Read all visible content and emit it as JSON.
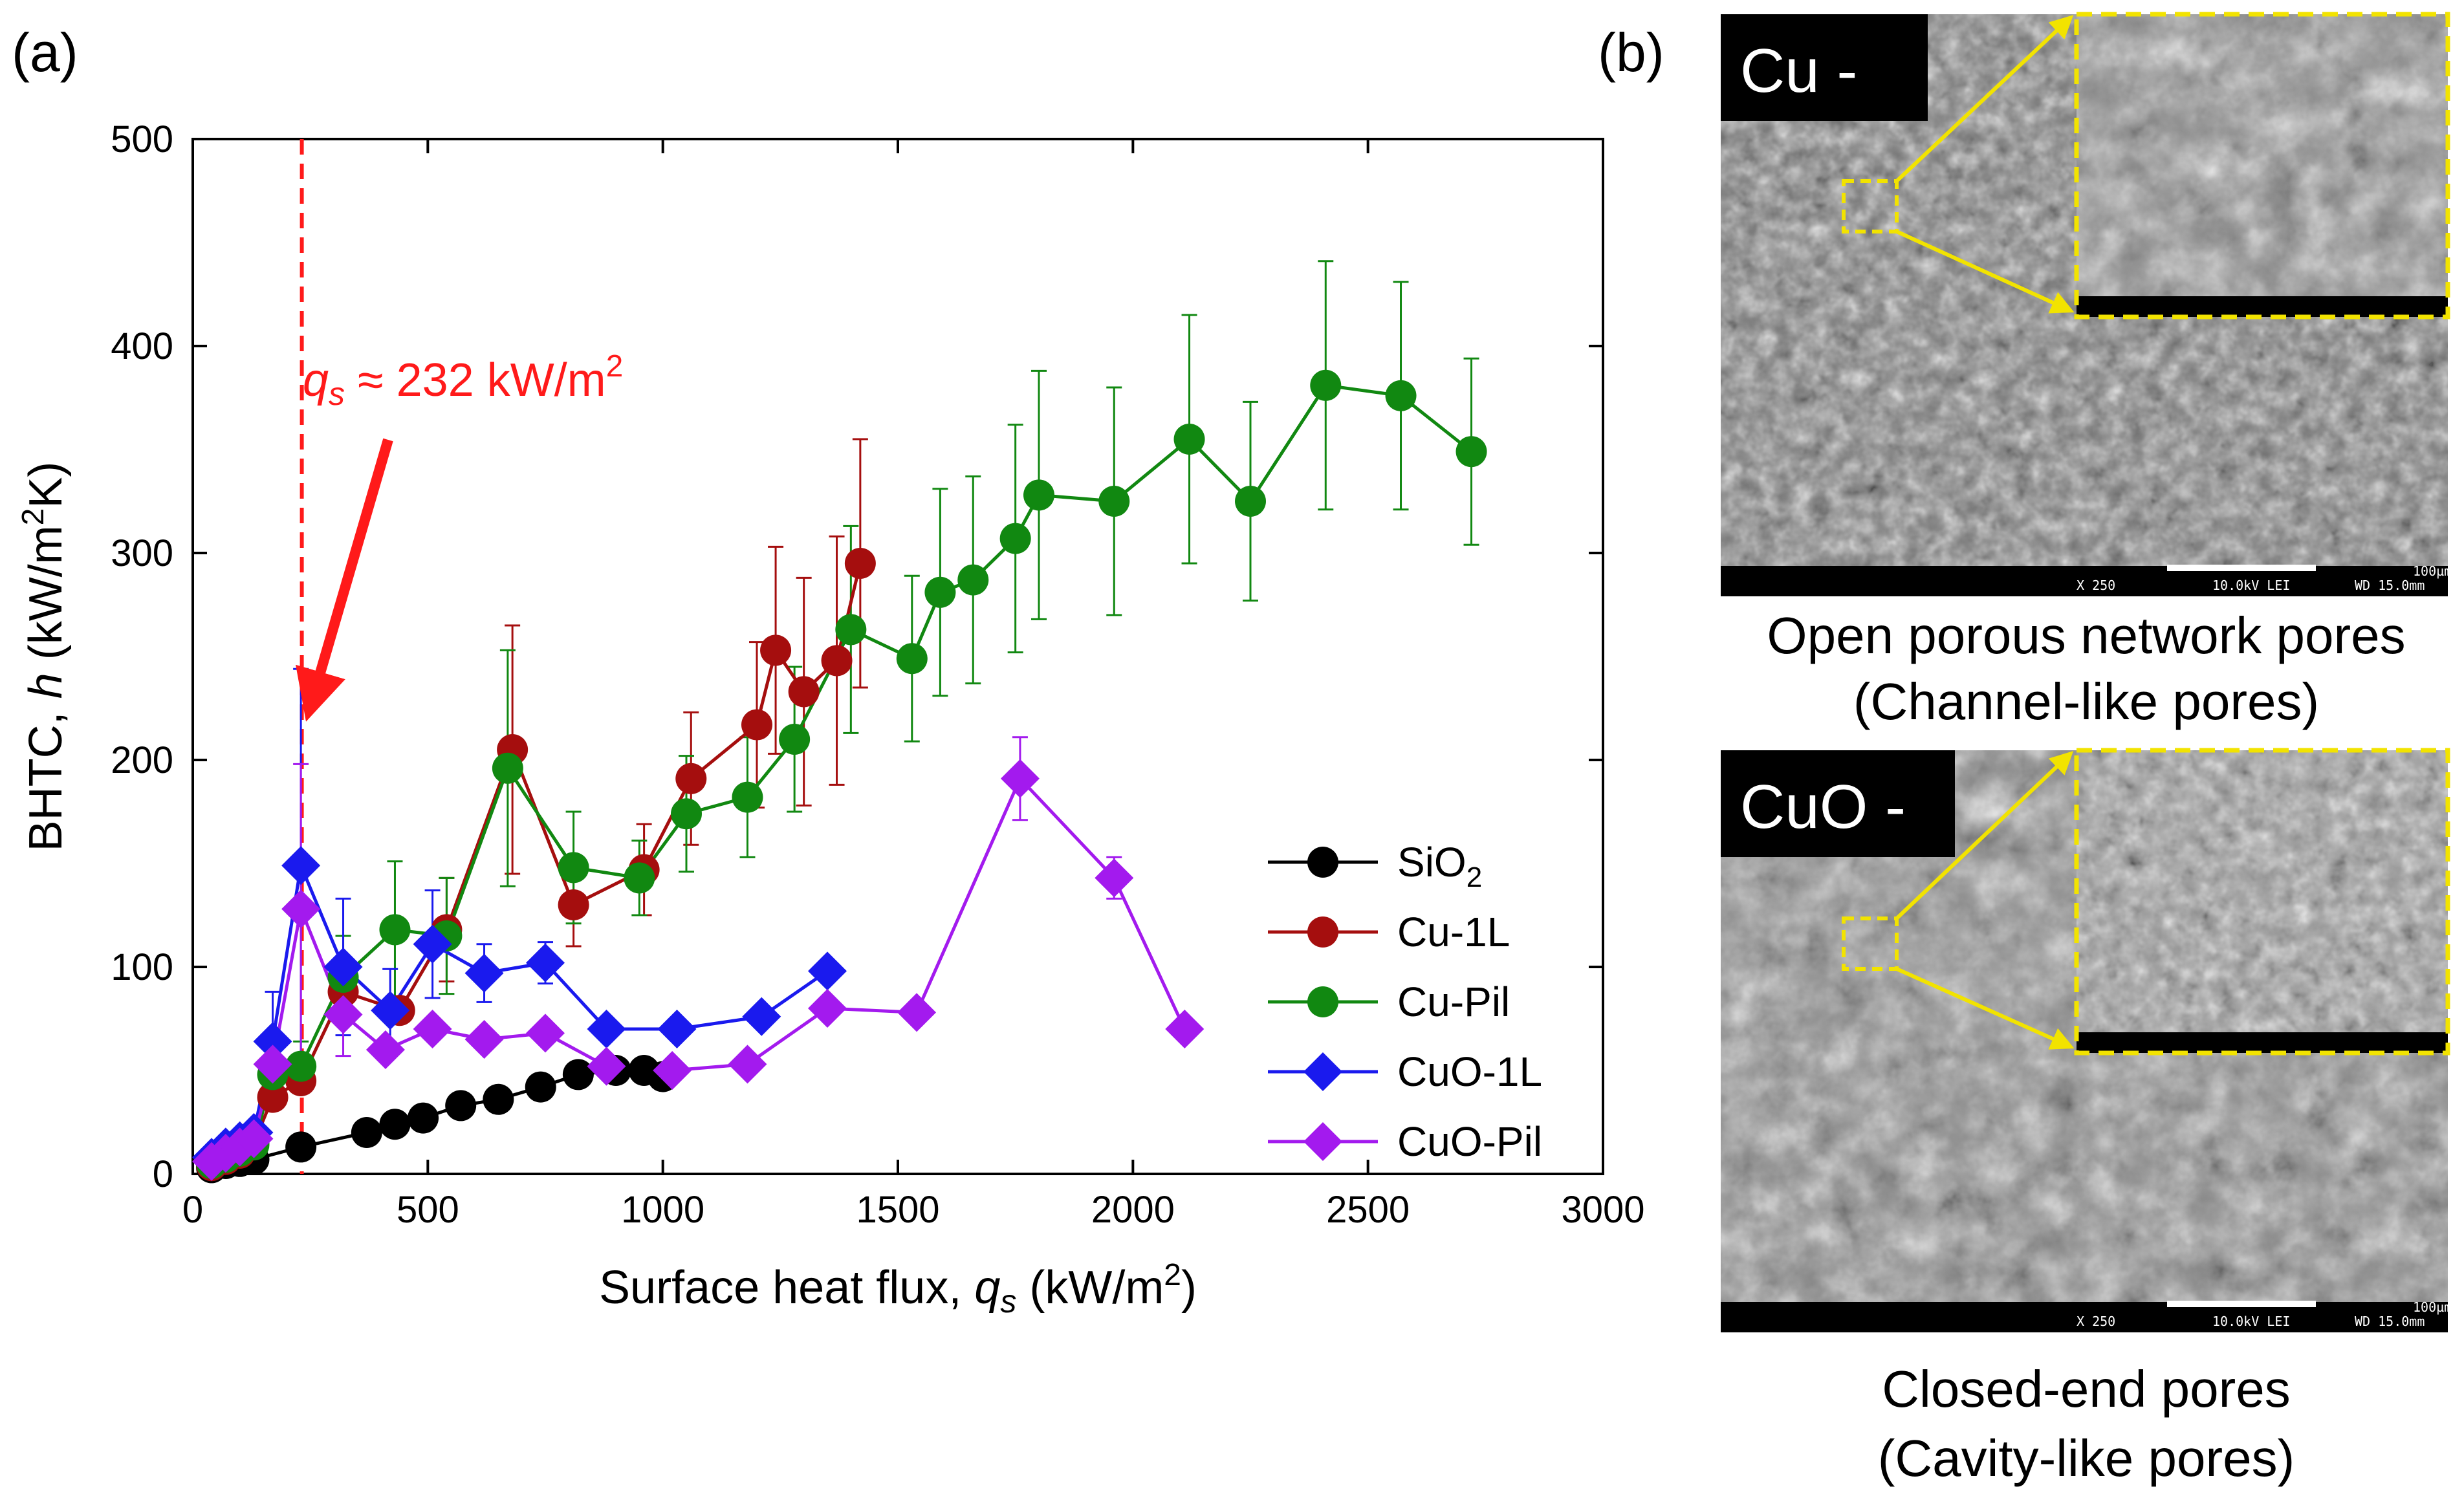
{
  "panel_a_label": "(a)",
  "panel_b_label": "(b)",
  "colors": {
    "SiO2": "#000000",
    "Cu-1L": "#a50e0e",
    "Cu-Pil": "#118811",
    "CuO-1L": "#1a1aee",
    "CuO-Pil": "#a31aee",
    "annotation": "#ff1a1a",
    "zoom_box": "#f2e300"
  },
  "chart_data": {
    "type": "scatter",
    "title": "",
    "xlabel_main": "Surface heat flux, ",
    "xlabel_var": "q",
    "xlabel_sub": "s",
    "xlabel_unit": " (kW/m",
    "xlabel_sup": "2",
    "xlabel_end": ")",
    "ylabel_main": "BHTC, ",
    "ylabel_var": "h",
    "ylabel_unit": " (kW/m",
    "ylabel_sup": "2",
    "ylabel_end": "K)",
    "xlim": [
      0,
      3000
    ],
    "ylim": [
      0,
      500
    ],
    "xticks": [
      0,
      500,
      1000,
      1500,
      2000,
      2500,
      3000
    ],
    "yticks": [
      0,
      100,
      200,
      300,
      400,
      500
    ],
    "grid": false,
    "legend_position": "lower-right",
    "annotation": {
      "var": "q",
      "sub": "s",
      "text": " ≈ 232 kW/m",
      "sup": "2",
      "x": 232
    },
    "series": [
      {
        "name": "SiO2",
        "legend_main": "SiO",
        "legend_sub": "2",
        "marker": "circle",
        "x": [
          40,
          70,
          100,
          130,
          230,
          370,
          430,
          490,
          570,
          650,
          740,
          820,
          900,
          960,
          1000
        ],
        "y": [
          3,
          5,
          6,
          7,
          13,
          20,
          24,
          27,
          33,
          36,
          42,
          48,
          50,
          50,
          47
        ]
      },
      {
        "name": "Cu-1L",
        "legend_main": "Cu-1L",
        "legend_sub": "",
        "marker": "circle",
        "x": [
          40,
          70,
          100,
          130,
          170,
          230,
          320,
          440,
          540,
          680,
          810,
          960,
          1060,
          1200,
          1240,
          1300,
          1370,
          1420
        ],
        "y": [
          4,
          7,
          10,
          15,
          37,
          45,
          88,
          79,
          118,
          205,
          130,
          147,
          191,
          217,
          253,
          233,
          248,
          295
        ],
        "err": [
          0,
          0,
          0,
          0,
          0,
          0,
          0,
          0,
          25,
          60,
          20,
          22,
          32,
          40,
          50,
          55,
          60,
          60
        ]
      },
      {
        "name": "Cu-Pil",
        "legend_main": "Cu-Pil",
        "legend_sub": "",
        "marker": "circle",
        "x": [
          40,
          70,
          100,
          130,
          170,
          230,
          320,
          430,
          540,
          670,
          810,
          950,
          1050,
          1180,
          1280,
          1400,
          1530,
          1590,
          1660,
          1750,
          1800,
          1960,
          2120,
          2250,
          2410,
          2570,
          2720
        ],
        "y": [
          5,
          8,
          11,
          14,
          48,
          52,
          95,
          118,
          115,
          196,
          148,
          143,
          174,
          182,
          210,
          263,
          249,
          281,
          287,
          307,
          328,
          325,
          355,
          325,
          381,
          376,
          349
        ],
        "err": [
          0,
          0,
          0,
          0,
          0,
          12,
          20,
          33,
          28,
          57,
          27,
          18,
          28,
          29,
          35,
          50,
          40,
          50,
          50,
          55,
          60,
          55,
          60,
          48,
          60,
          55,
          45
        ]
      },
      {
        "name": "CuO-1L",
        "legend_main": "CuO-1L",
        "legend_sub": "",
        "marker": "diamond",
        "x": [
          40,
          70,
          100,
          130,
          170,
          230,
          320,
          420,
          510,
          620,
          750,
          880,
          1030,
          1210,
          1350
        ],
        "y": [
          8,
          13,
          16,
          20,
          64,
          149,
          100,
          79,
          111,
          97,
          102,
          70,
          70,
          76,
          98
        ],
        "err": [
          0,
          0,
          0,
          0,
          24,
          95,
          33,
          20,
          26,
          14,
          10,
          0,
          0,
          0,
          0
        ]
      },
      {
        "name": "CuO-Pil",
        "legend_main": "CuO-Pil",
        "legend_sub": "",
        "marker": "diamond",
        "x": [
          40,
          70,
          100,
          130,
          170,
          230,
          320,
          410,
          510,
          620,
          750,
          880,
          1020,
          1180,
          1350,
          1540,
          1760,
          1960,
          2110
        ],
        "y": [
          6,
          10,
          13,
          17,
          53,
          128,
          77,
          60,
          70,
          65,
          68,
          52,
          50,
          53,
          80,
          78,
          191,
          143,
          70
        ],
        "err": [
          0,
          0,
          0,
          0,
          12,
          70,
          20,
          0,
          0,
          0,
          0,
          0,
          0,
          0,
          0,
          0,
          20,
          10,
          0
        ]
      }
    ]
  },
  "panel_b": {
    "top": {
      "tag": "Cu -",
      "caption_line1": "Open porous network pores",
      "caption_line2": "(Channel-like pores)",
      "footer_mag": "X 250",
      "footer_kv": "10.0kV LEI",
      "footer_wd": "WD 15.0mm",
      "footer_scale": "100µm"
    },
    "bottom": {
      "tag": "CuO -",
      "caption_line1": "Closed-end pores",
      "caption_line2": "(Cavity-like pores)",
      "footer_mag": "X 250",
      "footer_kv": "10.0kV LEI",
      "footer_wd": "WD 15.0mm",
      "footer_scale": "100µm"
    }
  }
}
